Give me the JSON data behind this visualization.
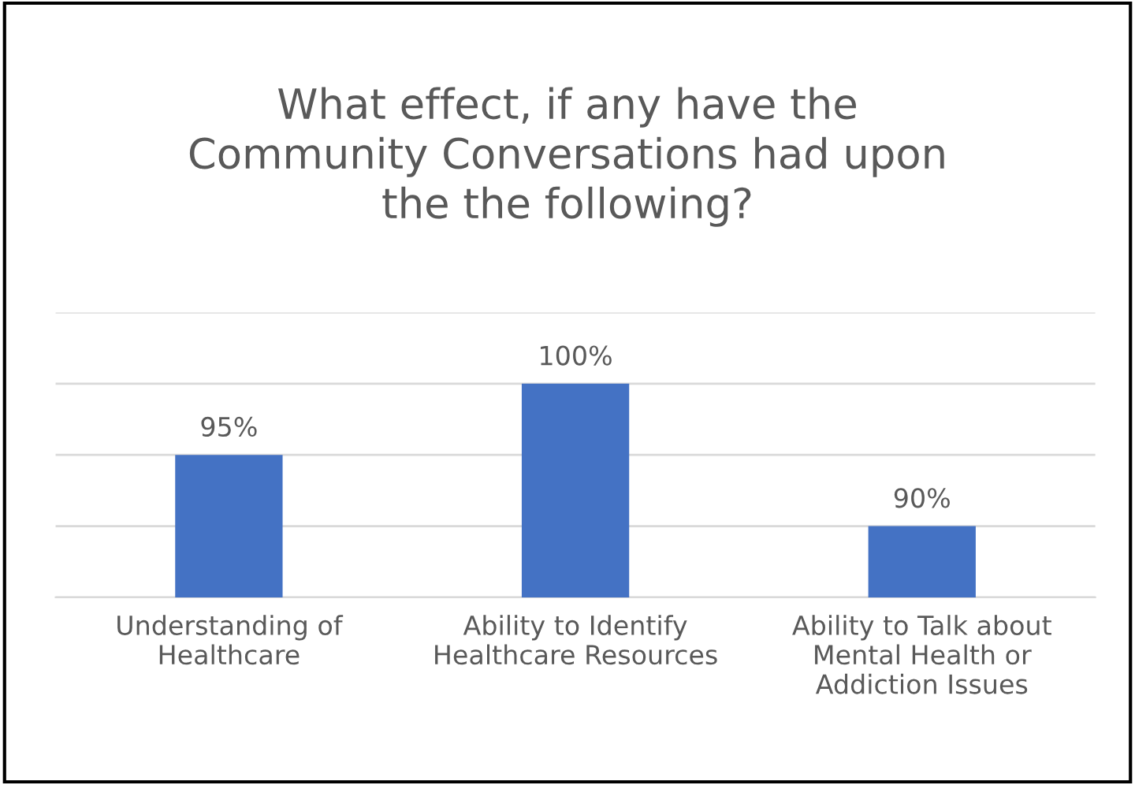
{
  "chart_data": {
    "type": "bar",
    "title": "What effect, if any have the\nCommunity Conversations had upon\nthe the following?",
    "categories": [
      "Understanding of\nHealthcare",
      "Ability to Identify\nHealthcare Resources",
      "Ability to Talk about\nMental Health or\nAddiction Issues"
    ],
    "values": [
      95,
      100,
      90
    ],
    "color": "#4472c4",
    "ylim": [
      85,
      105
    ],
    "yticks": [
      {
        "value": 85,
        "label": null
      },
      {
        "value": 90,
        "label": null
      },
      {
        "value": 95,
        "label": null
      },
      {
        "value": 100,
        "label": null
      },
      {
        "value": 105,
        "label": null
      }
    ],
    "value_labels": [
      "95%",
      "100%",
      "90%"
    ],
    "grid": "y",
    "tick_labels": "x"
  }
}
